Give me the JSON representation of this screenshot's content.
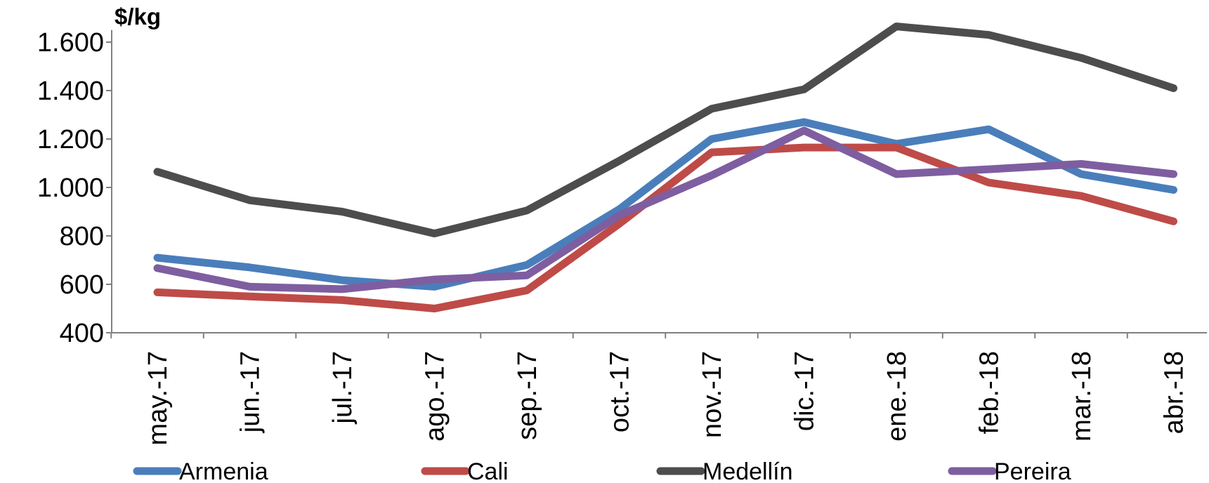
{
  "chart_data": {
    "type": "line",
    "ylabel": "$/kg",
    "categories": [
      "may.-17",
      "jun.-17",
      "jul.-17",
      "ago.-17",
      "sep.-17",
      "oct.-17",
      "nov.-17",
      "dic.-17",
      "ene.-18",
      "feb.-18",
      "mar.-18",
      "abr.-18"
    ],
    "ylim": [
      400,
      1650
    ],
    "yticks": [
      400,
      600,
      800,
      1000,
      1200,
      1400,
      1600
    ],
    "ytick_labels": [
      "400",
      "600",
      "800",
      "1.000",
      "1.200",
      "1.400",
      "1.600"
    ],
    "grid": false,
    "legend_position": "bottom",
    "series": [
      {
        "name": "Armenia",
        "color": "#4a7ebb",
        "values": [
          710,
          670,
          617,
          590,
          680,
          910,
          1200,
          1270,
          1180,
          1240,
          1055,
          990
        ]
      },
      {
        "name": "Cali",
        "color": "#be4b48",
        "values": [
          567,
          550,
          535,
          500,
          575,
          850,
          1145,
          1165,
          1165,
          1020,
          965,
          860
        ]
      },
      {
        "name": "Medellín",
        "color": "#4d4d4d",
        "values": [
          1065,
          947,
          900,
          810,
          905,
          1110,
          1325,
          1405,
          1665,
          1630,
          1535,
          1410
        ]
      },
      {
        "name": "Pereira",
        "color": "#7e5ea0",
        "values": [
          667,
          590,
          580,
          620,
          637,
          885,
          1050,
          1235,
          1055,
          1075,
          1097,
          1055
        ]
      }
    ]
  }
}
